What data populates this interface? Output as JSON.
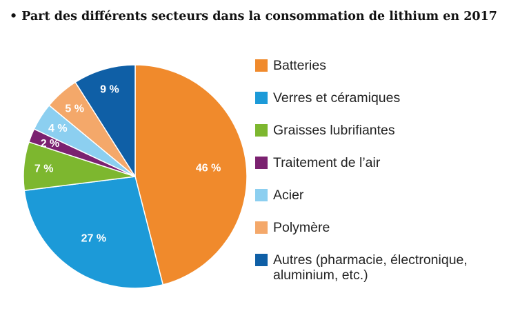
{
  "title": "• Part des différents secteurs dans la consommation de lithium en 2017",
  "chart_data": {
    "type": "pie",
    "title": "• Part des différents secteurs dans la consommation de lithium en 2017",
    "slices": [
      {
        "name": "Batteries",
        "value": 46,
        "label": "46 %",
        "color": "#F08A2C"
      },
      {
        "name": "Verres et céramiques",
        "value": 27,
        "label": "27 %",
        "color": "#1C9AD8"
      },
      {
        "name": "Graisses lubrifiantes",
        "value": 7,
        "label": "7 %",
        "color": "#7DB72F"
      },
      {
        "name": "Traitement de l’air",
        "value": 2,
        "label": "2 %",
        "color": "#7B2170"
      },
      {
        "name": "Acier",
        "value": 4,
        "label": "4 %",
        "color": "#8CCFF0"
      },
      {
        "name": "Polymère",
        "value": 5,
        "label": "5 %",
        "color": "#F4A86A"
      },
      {
        "name": "Autres (pharmacie, électronique, aluminium, etc.)",
        "value": 9,
        "label": "9 %",
        "color": "#0F5FA6"
      }
    ],
    "legend_position": "right"
  }
}
